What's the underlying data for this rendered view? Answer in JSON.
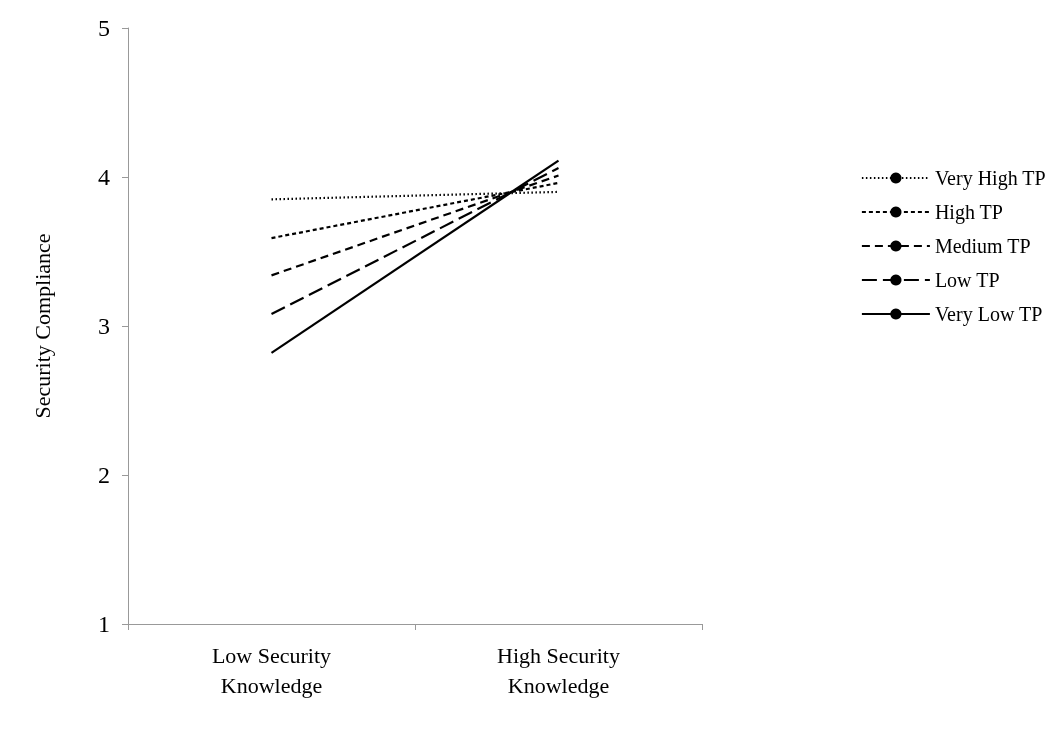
{
  "chart_data": {
    "type": "line",
    "ylabel": "Security Compliance",
    "categories": [
      "Low Security\nKnowledge",
      "High Security\nKnowledge"
    ],
    "series": [
      {
        "name": "Very High TP",
        "color": "#000000",
        "line_style": "dotted",
        "values": [
          3.85,
          3.9
        ]
      },
      {
        "name": "High TP",
        "color": "#000000",
        "line_style": "dashed",
        "values": [
          3.59,
          3.96
        ]
      },
      {
        "name": "Medium TP",
        "color": "#000000",
        "line_style": "dashed",
        "values": [
          3.34,
          4.01
        ]
      },
      {
        "name": "Low TP",
        "color": "#000000",
        "line_style": "dashed",
        "values": [
          3.08,
          4.06
        ]
      },
      {
        "name": "Very Low TP",
        "color": "#000000",
        "line_style": "solid",
        "values": [
          2.82,
          4.11
        ]
      }
    ],
    "ylim": [
      1,
      5
    ],
    "yticks": [
      1,
      2,
      3,
      4,
      5
    ],
    "grid": false,
    "legend": "right",
    "marker": "none"
  }
}
